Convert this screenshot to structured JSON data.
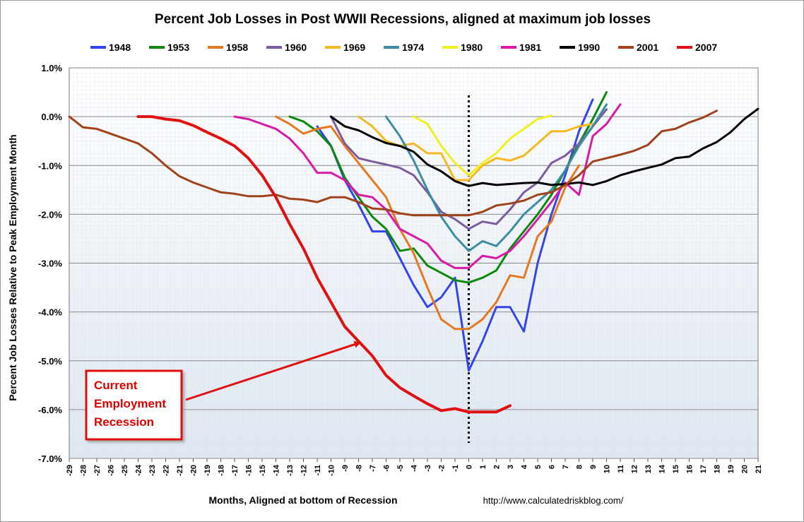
{
  "chart_data": {
    "type": "line",
    "title": "Percent Job Losses in Post WWII Recessions, aligned at maximum job losses",
    "xlabel": "Months, Aligned at bottom of Recession",
    "ylabel": "Percent Job Losses Relative to Peak Employment Month",
    "xlim": [
      -29,
      21
    ],
    "ylim": [
      -7.0,
      1.0
    ],
    "x_ticks": [
      -29,
      -28,
      -27,
      -26,
      -25,
      -24,
      -23,
      -22,
      -21,
      -20,
      -19,
      -18,
      -17,
      -16,
      -15,
      -14,
      -13,
      -12,
      -11,
      -10,
      -9,
      -8,
      -7,
      -6,
      -5,
      -4,
      -3,
      -2,
      -1,
      0,
      1,
      2,
      3,
      4,
      5,
      6,
      7,
      8,
      9,
      10,
      11,
      12,
      13,
      14,
      15,
      16,
      17,
      18,
      19,
      20,
      21
    ],
    "y_ticks": [
      {
        "value": 1.0,
        "label": "1.0%"
      },
      {
        "value": 0.0,
        "label": "0.0%"
      },
      {
        "value": -1.0,
        "label": "-1.0%"
      },
      {
        "value": -2.0,
        "label": "-2.0%"
      },
      {
        "value": -3.0,
        "label": "-3.0%"
      },
      {
        "value": -4.0,
        "label": "-4.0%"
      },
      {
        "value": -5.0,
        "label": "-5.0%"
      },
      {
        "value": -6.0,
        "label": "-6.0%"
      },
      {
        "value": -7.0,
        "label": "-7.0%"
      }
    ],
    "grid": true,
    "legend_position": "top",
    "source_text": "http://www.calculatedriskblog.com/",
    "annotation": {
      "lines": [
        "Current",
        "Employment",
        "Recession"
      ],
      "points_to": {
        "x": -8,
        "y": -4.6
      }
    },
    "series": [
      {
        "name": "1948",
        "color": "#3344ee",
        "x": [
          -11,
          -10,
          -9,
          -8,
          -7,
          -6,
          -5,
          -4,
          -3,
          -2,
          -1,
          0,
          1,
          2,
          3,
          4,
          5,
          6,
          7,
          8,
          9
        ],
        "y": [
          -0.2,
          -0.6,
          -1.3,
          -1.8,
          -2.35,
          -2.35,
          -2.9,
          -3.45,
          -3.9,
          -3.7,
          -3.3,
          -5.2,
          -4.6,
          -3.9,
          -3.9,
          -4.4,
          -3.0,
          -2.0,
          -1.2,
          -0.3,
          0.35
        ]
      },
      {
        "name": "1953",
        "color": "#0a8a0a",
        "x": [
          -13,
          -12,
          -11,
          -10,
          -9,
          -8,
          -7,
          -6,
          -5,
          -4,
          -3,
          -2,
          -1,
          0,
          1,
          2,
          3,
          4,
          5,
          6,
          7,
          8,
          9,
          10
        ],
        "y": [
          0.0,
          -0.1,
          -0.3,
          -0.6,
          -1.25,
          -1.65,
          -2.05,
          -2.3,
          -2.75,
          -2.7,
          -3.05,
          -3.2,
          -3.35,
          -3.4,
          -3.3,
          -3.15,
          -2.7,
          -2.35,
          -2.0,
          -1.6,
          -1.1,
          -0.55,
          -0.05,
          0.5
        ]
      },
      {
        "name": "1958",
        "color": "#e87820",
        "x": [
          -14,
          -13,
          -12,
          -11,
          -10,
          -9,
          -8,
          -7,
          -6,
          -5,
          -4,
          -3,
          -2,
          -1,
          0,
          1,
          2,
          3,
          4,
          5,
          6,
          7,
          8
        ],
        "y": [
          0.0,
          -0.15,
          -0.35,
          -0.25,
          -0.2,
          -0.6,
          -0.95,
          -1.3,
          -1.65,
          -2.3,
          -2.8,
          -3.5,
          -4.15,
          -4.35,
          -4.35,
          -4.15,
          -3.8,
          -3.25,
          -3.3,
          -2.45,
          -2.15,
          -1.45,
          -1.0
        ]
      },
      {
        "name": "1960",
        "color": "#7a5c9e",
        "x": [
          -10,
          -9,
          -8,
          -7,
          -6,
          -5,
          -4,
          -3,
          -2,
          -1,
          0,
          1,
          2,
          3,
          4,
          5,
          6,
          7,
          8,
          9,
          10
        ],
        "y": [
          0.0,
          -0.55,
          -0.85,
          -0.92,
          -0.98,
          -1.05,
          -1.2,
          -1.55,
          -1.95,
          -2.1,
          -2.3,
          -2.15,
          -2.2,
          -1.9,
          -1.55,
          -1.35,
          -0.95,
          -0.8,
          -0.55,
          -0.2,
          0.15
        ]
      },
      {
        "name": "1969",
        "color": "#f5b820",
        "x": [
          -8,
          -7,
          -6,
          -5,
          -4,
          -3,
          -2,
          -1,
          0,
          1,
          2,
          3,
          4,
          5,
          6,
          7,
          8,
          9
        ],
        "y": [
          0.0,
          -0.2,
          -0.5,
          -0.6,
          -0.55,
          -0.75,
          -0.75,
          -1.3,
          -1.3,
          -1.0,
          -0.85,
          -0.9,
          -0.8,
          -0.55,
          -0.3,
          -0.3,
          -0.2,
          -0.15
        ]
      },
      {
        "name": "1974",
        "color": "#3a8ea0",
        "x": [
          -6,
          -5,
          -4,
          -3,
          -2,
          -1,
          0,
          1,
          2,
          3,
          4,
          5,
          6,
          7,
          8,
          9,
          10
        ],
        "y": [
          0.0,
          -0.4,
          -0.9,
          -1.5,
          -2.05,
          -2.45,
          -2.75,
          -2.55,
          -2.65,
          -2.35,
          -2.0,
          -1.75,
          -1.5,
          -1.1,
          -0.6,
          -0.2,
          0.25
        ]
      },
      {
        "name": "1980",
        "color": "#f0f020",
        "x": [
          -4,
          -3,
          -2,
          -1,
          0,
          1,
          2,
          3,
          4,
          5,
          6
        ],
        "y": [
          0.0,
          -0.15,
          -0.6,
          -0.95,
          -1.2,
          -0.95,
          -0.75,
          -0.45,
          -0.25,
          -0.05,
          0.02
        ]
      },
      {
        "name": "1981",
        "color": "#d81aa6",
        "x": [
          -17,
          -16,
          -15,
          -14,
          -13,
          -12,
          -11,
          -10,
          -9,
          -8,
          -7,
          -6,
          -5,
          -4,
          -3,
          -2,
          -1,
          0,
          1,
          2,
          3,
          4,
          5,
          6,
          7,
          8,
          9,
          10,
          11
        ],
        "y": [
          0.0,
          -0.05,
          -0.15,
          -0.25,
          -0.45,
          -0.75,
          -1.15,
          -1.15,
          -1.3,
          -1.6,
          -1.65,
          -1.9,
          -2.3,
          -2.45,
          -2.6,
          -2.95,
          -3.1,
          -3.1,
          -2.85,
          -2.9,
          -2.75,
          -2.45,
          -2.1,
          -1.75,
          -1.35,
          -1.6,
          -0.4,
          -0.15,
          0.25
        ]
      },
      {
        "name": "1990",
        "color": "#000000",
        "x": [
          -10,
          -9,
          -8,
          -7,
          -6,
          -5,
          -4,
          -3,
          -2,
          -1,
          0,
          1,
          2,
          3,
          4,
          5,
          6,
          7,
          8,
          9,
          10,
          11,
          12,
          13,
          14,
          15,
          16,
          17,
          18,
          19,
          20,
          21
        ],
        "y": [
          0.0,
          -0.2,
          -0.28,
          -0.42,
          -0.54,
          -0.6,
          -0.72,
          -0.98,
          -1.12,
          -1.32,
          -1.42,
          -1.36,
          -1.4,
          -1.38,
          -1.36,
          -1.35,
          -1.4,
          -1.38,
          -1.35,
          -1.4,
          -1.32,
          -1.2,
          -1.12,
          -1.05,
          -0.98,
          -0.85,
          -0.82,
          -0.65,
          -0.52,
          -0.32,
          -0.05,
          0.16
        ]
      },
      {
        "name": "2001",
        "color": "#a0421a",
        "x": [
          -29,
          -28,
          -27,
          -26,
          -25,
          -24,
          -23,
          -22,
          -21,
          -20,
          -19,
          -18,
          -17,
          -16,
          -15,
          -14,
          -13,
          -12,
          -11,
          -10,
          -9,
          -8,
          -7,
          -6,
          -5,
          -4,
          -3,
          -2,
          -1,
          0,
          1,
          2,
          3,
          4,
          5,
          6,
          7,
          8,
          9,
          10,
          11,
          12,
          13,
          14,
          15,
          16,
          17,
          18
        ],
        "y": [
          0.0,
          -0.22,
          -0.25,
          -0.35,
          -0.45,
          -0.55,
          -0.75,
          -1.0,
          -1.22,
          -1.35,
          -1.45,
          -1.55,
          -1.58,
          -1.63,
          -1.63,
          -1.6,
          -1.68,
          -1.7,
          -1.75,
          -1.65,
          -1.65,
          -1.75,
          -1.88,
          -1.9,
          -1.98,
          -2.02,
          -2.02,
          -2.02,
          -2.02,
          -2.02,
          -1.95,
          -1.82,
          -1.78,
          -1.72,
          -1.6,
          -1.55,
          -1.4,
          -1.2,
          -0.92,
          -0.85,
          -0.78,
          -0.7,
          -0.58,
          -0.3,
          -0.25,
          -0.12,
          -0.02,
          0.12
        ]
      },
      {
        "name": "2007",
        "color": "#e01010",
        "x": [
          -24,
          -23,
          -22,
          -21,
          -20,
          -19,
          -18,
          -17,
          -16,
          -15,
          -14,
          -13,
          -12,
          -11,
          -10,
          -9,
          -8,
          -7,
          -6,
          -5,
          -4,
          -3,
          -2,
          -1,
          0,
          1,
          2,
          3
        ],
        "y": [
          0.0,
          0.0,
          -0.05,
          -0.08,
          -0.18,
          -0.32,
          -0.45,
          -0.6,
          -0.85,
          -1.2,
          -1.65,
          -2.2,
          -2.7,
          -3.3,
          -3.8,
          -4.3,
          -4.6,
          -4.9,
          -5.3,
          -5.55,
          -5.72,
          -5.88,
          -6.02,
          -5.98,
          -6.05,
          -6.05,
          -6.05,
          -5.92
        ]
      }
    ]
  }
}
